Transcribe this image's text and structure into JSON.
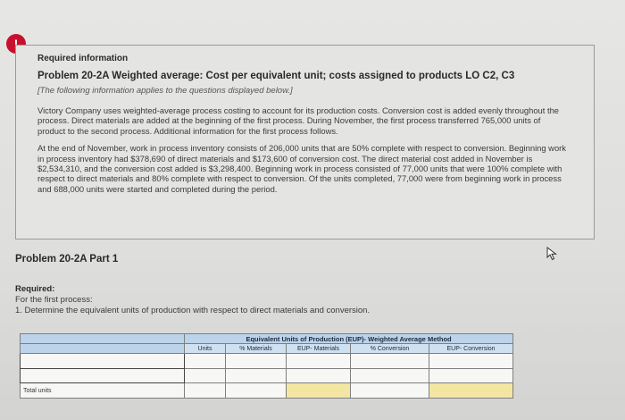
{
  "alert": {
    "symbol": "!"
  },
  "info": {
    "heading": "Required information",
    "title": "Problem 20-2A Weighted average: Cost per equivalent unit; costs assigned to products LO C2, C3",
    "note": "[The following information applies to the questions displayed below.]",
    "para1": "Victory Company uses weighted-average process costing to account for its production costs. Conversion cost is added evenly throughout the process. Direct materials are added at the beginning of the first process. During November, the first process transferred 765,000 units of product to the second process. Additional information for the first process follows.",
    "para2": "At the end of November, work in process inventory consists of 206,000 units that are 50% complete with respect to conversion. Beginning work in process inventory had $378,690 of direct materials and $173,600 of conversion cost. The direct material cost added in November is $2,534,310, and the conversion cost added is $3,298,400. Beginning work in process consisted of 77,000 units that were 100% complete with respect to direct materials and 80% complete with respect to conversion. Of the units completed, 77,000 were from beginning work in process and 688,000 units were started and completed during the period."
  },
  "part": {
    "title": "Problem 20-2A Part 1"
  },
  "required": {
    "label": "Required:",
    "scope": "For the first process:",
    "task": "1. Determine the equivalent units of production with respect to direct materials and conversion."
  },
  "table": {
    "caption": "Equivalent Units of Production (EUP)- Weighted Average Method",
    "columns": [
      "Units",
      "% Materials",
      "EUP- Materials",
      "% Conversion",
      "EUP- Conversion"
    ],
    "total_label": "Total units"
  },
  "icons": {
    "cursor": "cursor-arrow-icon"
  },
  "colors": {
    "header": "#bcd3ea",
    "total_highlight": "#f3e6a3",
    "alert": "#c8102e"
  }
}
